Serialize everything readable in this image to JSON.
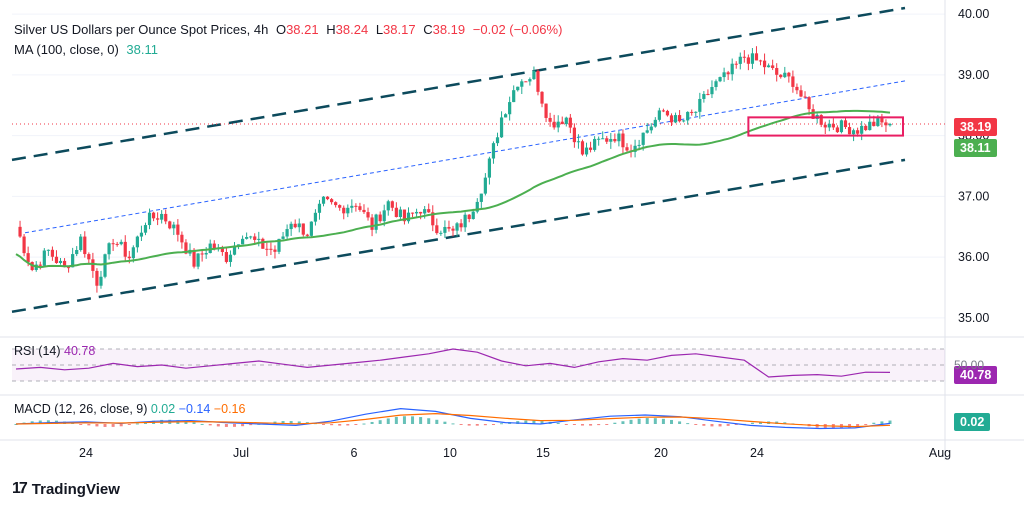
{
  "header": {
    "symbol": "Silver US Dollars per Ounce Spot Prices, 4h",
    "o_label": "O",
    "o_value": "38.21",
    "h_label": "H",
    "h_value": "38.24",
    "l_label": "L",
    "l_value": "38.17",
    "c_label": "C",
    "c_value": "38.19",
    "change": "−0.02 (−0.06%)"
  },
  "ma": {
    "label": "MA (100, close, 0)",
    "value": "38.11"
  },
  "rsi": {
    "label": "RSI (14)",
    "value": "40.78",
    "partial_level": "50.00"
  },
  "macd": {
    "label": "MACD (12, 26, close, 9)",
    "v1": "0.02",
    "v2": "−0.14",
    "v3": "−0.16"
  },
  "price_tags": {
    "last": "38.19",
    "ma": "38.11",
    "rsi": "40.78",
    "macd": "0.02"
  },
  "logo": {
    "text": "TradingView"
  },
  "colors": {
    "up": "#22ab94",
    "down": "#f23645",
    "ma": "#4caf50",
    "rsi": "#9c27b0",
    "macd": "#2962ff",
    "signal": "#ff6d00",
    "box": "#e91e63",
    "channel": "#0c4a5c"
  },
  "chart_data": {
    "type": "candlestick",
    "y_ticks": [
      "40.00",
      "39.00",
      "38.00",
      "37.00",
      "36.00",
      "35.00"
    ],
    "ylim": [
      34.8,
      40.1
    ],
    "x_ticks": [
      "24",
      "Jul",
      "6",
      "10",
      "15",
      "20",
      "24",
      "Aug"
    ],
    "price_path": [
      36.5,
      35.8,
      36.1,
      35.8,
      36.3,
      35.6,
      36.3,
      36.0,
      36.6,
      36.7,
      36.4,
      35.9,
      36.2,
      36.0,
      36.4,
      36.2,
      36.1,
      36.6,
      36.4,
      36.9,
      36.8,
      36.9,
      36.5,
      36.9,
      36.6,
      36.8,
      36.5,
      36.4,
      36.7,
      37.3,
      38.3,
      38.9,
      39.0,
      38.2,
      38.3,
      37.7,
      37.9,
      38.0,
      37.8,
      38.1,
      38.4,
      38.2,
      38.4,
      38.8,
      39.0,
      39.3,
      39.2,
      39.0,
      38.9,
      38.4,
      38.2,
      38.15,
      38.1,
      38.2,
      38.19
    ],
    "ma100": {
      "start": 35.5,
      "end": 38.11,
      "value": "38.11"
    },
    "channel": {
      "upper": [
        37.6,
        40.1
      ],
      "lower": [
        35.1,
        37.6
      ],
      "mid": [
        36.4,
        38.9
      ]
    },
    "consolidation_box": [
      38.0,
      38.3
    ],
    "rsi_path": [
      45,
      47,
      44,
      46,
      52,
      48,
      50,
      46,
      49,
      52,
      55,
      51,
      47,
      50,
      53,
      56,
      60,
      64,
      70,
      66,
      55,
      49,
      52,
      47,
      54,
      58,
      56,
      62,
      64,
      60,
      56,
      35,
      37,
      38,
      36,
      41,
      40.78
    ],
    "macd_path": [
      0.0,
      0.05,
      0.08,
      0.02,
      0.1,
      0.12,
      0.05,
      0.0,
      -0.05,
      0.1,
      0.35,
      0.55,
      0.45,
      0.2,
      0.05,
      0.0,
      0.15,
      0.28,
      0.32,
      0.26,
      0.1,
      -0.05,
      -0.12,
      -0.16,
      -0.14,
      0.02
    ]
  }
}
